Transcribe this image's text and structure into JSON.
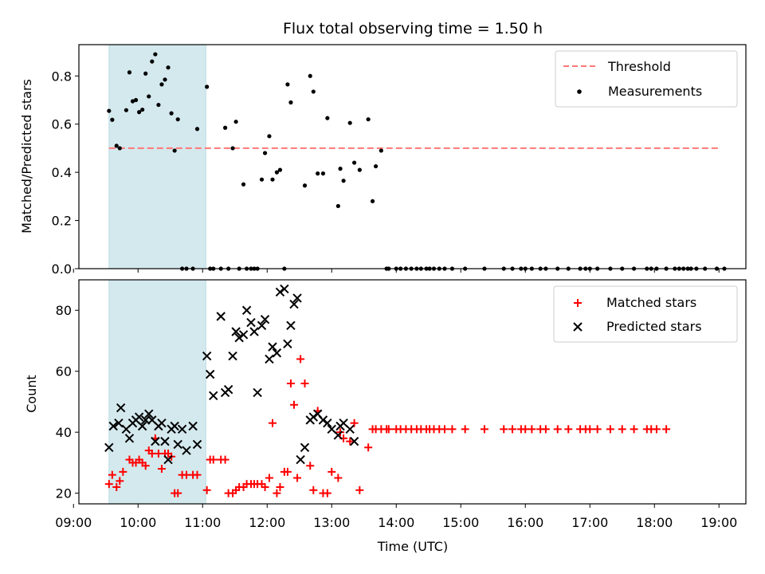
{
  "chart_data": [
    {
      "type": "scatter",
      "title": "Flux total observing time = 1.50 h",
      "ylabel": "Matched/Predicted stars",
      "xlabel": "",
      "xlim": [
        "09:05",
        "19:25"
      ],
      "ylim": [
        0,
        0.93
      ],
      "x_ticks": [
        "09:00",
        "10:00",
        "11:00",
        "12:00",
        "13:00",
        "14:00",
        "15:00",
        "16:00",
        "17:00",
        "18:00",
        "19:00"
      ],
      "y_ticks": [
        "0.0",
        "0.2",
        "0.4",
        "0.6",
        "0.8"
      ],
      "shaded_interval": {
        "start": "09:33",
        "end": "11:03",
        "color": "#d4e9ee"
      },
      "legend_position": "upper right",
      "series": [
        {
          "name": "Threshold",
          "kind": "dashed-line",
          "color": "#ff7777",
          "x": [
            "09:33",
            "19:00"
          ],
          "values": [
            0.5,
            0.5
          ]
        },
        {
          "name": "Measurements",
          "kind": "points",
          "color": "#000000",
          "x": [
            "09:33",
            "09:36",
            "09:40",
            "09:43",
            "09:49",
            "09:52",
            "09:55",
            "09:58",
            "10:01",
            "10:04",
            "10:07",
            "10:10",
            "10:13",
            "10:16",
            "10:19",
            "10:22",
            "10:25",
            "10:28",
            "10:31",
            "10:34",
            "10:37",
            "10:41",
            "10:45",
            "10:51",
            "10:55",
            "11:04",
            "11:07",
            "11:10",
            "11:17",
            "11:21",
            "11:24",
            "11:28",
            "11:31",
            "11:34",
            "11:38",
            "11:41",
            "11:45",
            "11:48",
            "11:51",
            "11:55",
            "11:58",
            "12:02",
            "12:05",
            "12:09",
            "12:12",
            "12:16",
            "12:19",
            "12:22",
            "12:35",
            "12:40",
            "12:43",
            "12:47",
            "12:52",
            "12:56",
            "13:06",
            "13:08",
            "13:11",
            "13:17",
            "13:21",
            "13:26",
            "13:34",
            "13:38",
            "13:41",
            "13:46",
            "13:51",
            "13:53",
            "14:00",
            "14:04",
            "14:09",
            "14:14",
            "14:19",
            "14:23",
            "14:28",
            "14:31",
            "14:35",
            "14:40",
            "14:45",
            "14:52",
            "15:04",
            "15:22",
            "15:40",
            "15:48",
            "15:56",
            "16:00",
            "16:06",
            "16:14",
            "16:19",
            "16:30",
            "16:40",
            "16:51",
            "16:56",
            "17:00",
            "17:07",
            "17:19",
            "17:30",
            "17:41",
            "17:53",
            "17:57",
            "18:02",
            "18:11",
            "18:19",
            "18:23",
            "18:27",
            "18:31",
            "18:34",
            "18:39",
            "18:47",
            "18:58",
            "19:05"
          ],
          "values": [
            0.655,
            0.618,
            0.51,
            0.5,
            0.658,
            0.815,
            0.695,
            0.7,
            0.65,
            0.66,
            0.81,
            0.715,
            0.86,
            0.89,
            0.68,
            0.765,
            0.785,
            0.835,
            0.645,
            0.49,
            0.62,
            0.0,
            0.0,
            0.0,
            0.58,
            0.755,
            0.0,
            0.0,
            0.0,
            0.585,
            0.0,
            0.5,
            0.61,
            0.0,
            0.35,
            0.0,
            0.0,
            0.0,
            0.0,
            0.37,
            0.48,
            0.55,
            0.37,
            0.4,
            0.41,
            0.0,
            0.765,
            0.69,
            0.345,
            0.8,
            0.735,
            0.395,
            0.395,
            0.625,
            0.26,
            0.415,
            0.365,
            0.605,
            0.44,
            0.41,
            0.62,
            0.28,
            0.425,
            0.49,
            0.0,
            0.0,
            0.0,
            0.0,
            0.0,
            0.0,
            0.0,
            0.0,
            0.0,
            0.0,
            0.0,
            0.0,
            0.0,
            0.0,
            0.0,
            0.0,
            0.0,
            0.0,
            0.0,
            0.0,
            0.0,
            0.0,
            0.0,
            0.0,
            0.0,
            0.0,
            0.0,
            0.0,
            0.0,
            0.0,
            0.0,
            0.0,
            0.0,
            0.0,
            0.0,
            0.0,
            0.0,
            0.0,
            0.0,
            0.0,
            0.0,
            0.0,
            0.0,
            0.0,
            0.0
          ]
        }
      ]
    },
    {
      "type": "scatter",
      "title": "",
      "xlabel": "Time (UTC)",
      "ylabel": "Count",
      "xlim": [
        "09:05",
        "19:25"
      ],
      "ylim": [
        16.5,
        90
      ],
      "x_ticks": [
        "09:00",
        "10:00",
        "11:00",
        "12:00",
        "13:00",
        "14:00",
        "15:00",
        "16:00",
        "17:00",
        "18:00",
        "19:00"
      ],
      "y_ticks": [
        "20",
        "40",
        "60",
        "80"
      ],
      "shaded_interval": {
        "start": "09:33",
        "end": "11:03",
        "color": "#d4e9ee"
      },
      "legend_position": "upper right",
      "series": [
        {
          "name": "Matched stars",
          "kind": "plus",
          "color": "#ff0000",
          "x": [
            "09:33",
            "09:36",
            "09:40",
            "09:43",
            "09:46",
            "09:52",
            "09:55",
            "09:58",
            "10:01",
            "10:04",
            "10:07",
            "10:10",
            "10:13",
            "10:16",
            "10:19",
            "10:22",
            "10:25",
            "10:28",
            "10:31",
            "10:34",
            "10:37",
            "10:41",
            "10:45",
            "10:51",
            "10:55",
            "11:04",
            "11:07",
            "11:10",
            "11:17",
            "11:21",
            "11:24",
            "11:28",
            "11:31",
            "11:34",
            "11:38",
            "11:41",
            "11:45",
            "11:48",
            "11:51",
            "11:55",
            "11:58",
            "12:02",
            "12:05",
            "12:09",
            "12:12",
            "12:16",
            "12:19",
            "12:22",
            "12:25",
            "12:28",
            "12:31",
            "12:35",
            "12:40",
            "12:43",
            "12:47",
            "12:52",
            "12:56",
            "13:00",
            "13:06",
            "13:08",
            "13:11",
            "13:17",
            "13:21",
            "13:26",
            "13:34",
            "13:38",
            "13:41",
            "13:46",
            "13:51",
            "13:53",
            "14:00",
            "14:04",
            "14:09",
            "14:14",
            "14:19",
            "14:23",
            "14:28",
            "14:31",
            "14:35",
            "14:40",
            "14:45",
            "14:52",
            "15:04",
            "15:22",
            "15:40",
            "15:48",
            "15:56",
            "16:00",
            "16:06",
            "16:14",
            "16:19",
            "16:30",
            "16:40",
            "16:51",
            "16:56",
            "17:00",
            "17:07",
            "17:19",
            "17:30",
            "17:41",
            "17:53",
            "17:57",
            "18:02",
            "18:11"
          ],
          "values": [
            23,
            26,
            22,
            24,
            27,
            31,
            30,
            30,
            31,
            30,
            29,
            34,
            33,
            38,
            33,
            28,
            33,
            33,
            32,
            20,
            20,
            26,
            26,
            26,
            26,
            21,
            31,
            31,
            31,
            31,
            20,
            20,
            21,
            22,
            22,
            23,
            23,
            23,
            23,
            23,
            22,
            25,
            43,
            20,
            22,
            27,
            27,
            56,
            49,
            25,
            64,
            56,
            29,
            21,
            47,
            20,
            20,
            27,
            25,
            40,
            38,
            37,
            43,
            21,
            35,
            41,
            41,
            41,
            41,
            41,
            41,
            41,
            41,
            41,
            41,
            41,
            41,
            41,
            41,
            41,
            41,
            41,
            41,
            41,
            41,
            41,
            41,
            41,
            41,
            41,
            41,
            41,
            41,
            41,
            41,
            41,
            41,
            41,
            41,
            41,
            41,
            41,
            41,
            41
          ]
        },
        {
          "name": "Predicted stars",
          "kind": "cross",
          "color": "#000000",
          "x": [
            "09:33",
            "09:37",
            "09:42",
            "09:44",
            "09:49",
            "09:52",
            "09:55",
            "09:58",
            "10:01",
            "10:04",
            "10:07",
            "10:10",
            "10:13",
            "10:16",
            "10:19",
            "10:22",
            "10:25",
            "10:28",
            "10:31",
            "10:34",
            "10:37",
            "10:41",
            "10:45",
            "10:51",
            "10:55",
            "11:04",
            "11:07",
            "11:10",
            "11:17",
            "11:21",
            "11:24",
            "11:28",
            "11:31",
            "11:34",
            "11:38",
            "11:41",
            "11:45",
            "11:48",
            "11:51",
            "11:55",
            "11:58",
            "12:02",
            "12:05",
            "12:09",
            "12:12",
            "12:16",
            "12:19",
            "12:22",
            "12:25",
            "12:28",
            "12:31",
            "12:35",
            "12:40",
            "12:43",
            "12:47",
            "12:52",
            "12:56",
            "13:00",
            "13:06",
            "13:08",
            "13:11",
            "13:17",
            "13:21"
          ],
          "values": [
            35,
            42,
            43,
            48,
            41,
            38,
            43,
            44,
            45,
            42,
            44,
            46,
            44,
            37,
            42,
            43,
            37,
            31,
            41,
            42,
            36,
            41,
            34,
            42,
            36,
            65,
            59,
            52,
            78,
            53,
            54,
            65,
            73,
            71,
            72,
            80,
            76,
            73,
            53,
            75,
            77,
            64,
            68,
            66,
            86,
            87,
            69,
            75,
            82,
            84,
            31,
            35,
            44,
            45,
            46,
            44,
            43,
            41,
            39,
            42,
            43,
            41,
            37
          ]
        }
      ]
    }
  ]
}
